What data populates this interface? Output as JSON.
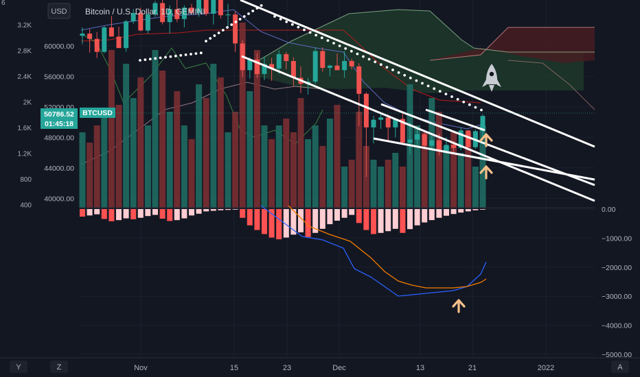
{
  "header": {
    "title": "Bitcoin / U.S. Dollar, 1D, GEMINI",
    "currency_button": "USD",
    "top_left_partial": "6"
  },
  "colors": {
    "background": "#131722",
    "up": "#26a69a",
    "down": "#ef5350",
    "vol_up": "#1f6b63",
    "vol_down": "#7a2f32",
    "hist_neg_dark": "#ff5252",
    "hist_neg_light": "#ffcdd2",
    "macd_line": "#2962ff",
    "signal_line": "#f57c00",
    "kumo_bull": "#1f3d2c",
    "kumo_bear": "#4a1d22",
    "price_tag": "#26a69a",
    "arrow": "#f6c08a"
  },
  "price_tag": {
    "symbol": "BTCUSD",
    "price": "50786.52",
    "countdown": "01:45:18"
  },
  "icons": {
    "rocket": "rocket-icon",
    "arrow": "arrow-up-icon"
  },
  "bottom_toolbar": {
    "left_a": "Y",
    "left_b": "Z",
    "right": "A"
  },
  "chart_data": [
    {
      "type": "candlestick",
      "title": "Bitcoin / U.S. Dollar, 1D, GEMINI",
      "price_axis": {
        "labels": [
          "60000.00",
          "56000.00",
          "52000.00",
          "48000.00",
          "44000.00",
          "40000.00"
        ],
        "values": [
          60000,
          56000,
          52000,
          48000,
          44000,
          40000
        ],
        "range": [
          38500,
          66000
        ]
      },
      "volume_axis": {
        "labels": [
          "3.2K",
          "2.8K",
          "2.4K",
          "2K",
          "1.6K",
          "1.2K",
          "800",
          "400"
        ],
        "values": [
          3200,
          2800,
          2400,
          2000,
          1600,
          1200,
          800,
          400
        ]
      },
      "x_axis": {
        "labels": [
          "Nov",
          "15",
          "23",
          "Dec",
          "13",
          "21",
          "2022"
        ]
      },
      "candles_ohlc": [
        [
          61300,
          62400,
          60200,
          61600
        ],
        [
          61600,
          62200,
          59100,
          60900
        ],
        [
          60900,
          61800,
          58400,
          59200
        ],
        [
          59200,
          62600,
          59000,
          62400
        ],
        [
          62400,
          63900,
          61500,
          61200
        ],
        [
          61200,
          62500,
          59800,
          59700
        ],
        [
          59700,
          63400,
          59200,
          63200
        ],
        [
          63200,
          64800,
          62900,
          64300
        ],
        [
          64300,
          65000,
          61900,
          62000
        ],
        [
          62000,
          64300,
          61600,
          64100
        ],
        [
          64100,
          65900,
          63800,
          65600
        ],
        [
          65600,
          68500,
          62800,
          63100
        ],
        [
          63100,
          65300,
          61600,
          64800
        ],
        [
          64800,
          66100,
          63100,
          63500
        ],
        [
          63500,
          65300,
          62400,
          65000
        ],
        [
          65000,
          65500,
          64100,
          64300
        ],
        [
          64300,
          66500,
          63800,
          66000
        ],
        [
          66000,
          67000,
          63900,
          64200
        ],
        [
          64200,
          67800,
          62800,
          67400
        ],
        [
          67400,
          68400,
          63600,
          64000
        ],
        [
          64000,
          65500,
          62300,
          64100
        ],
        [
          64100,
          64500,
          59200,
          60300
        ],
        [
          60300,
          60700,
          55900,
          56800
        ],
        [
          56800,
          58500,
          55700,
          58200
        ],
        [
          58200,
          59000,
          55800,
          56300
        ],
        [
          56300,
          58600,
          55500,
          57600
        ],
        [
          57600,
          58400,
          55400,
          57000
        ],
        [
          57000,
          59400,
          56300,
          58900
        ],
        [
          58900,
          59200,
          56900,
          58000
        ],
        [
          58000,
          58500,
          54600,
          55800
        ],
        [
          55800,
          57300,
          53800,
          55000
        ],
        [
          55000,
          55800,
          53600,
          55300
        ],
        [
          55300,
          59800,
          55000,
          59300
        ],
        [
          59300,
          59800,
          56600,
          57100
        ],
        [
          57100,
          57500,
          56000,
          57400
        ],
        [
          57400,
          59000,
          57100,
          56800
        ],
        [
          56800,
          59300,
          55800,
          58000
        ],
        [
          58000,
          58300,
          56900,
          57300
        ],
        [
          57300,
          57700,
          49500,
          53700
        ],
        [
          53700,
          53900,
          42800,
          49300
        ],
        [
          49300,
          50800,
          47200,
          50300
        ],
        [
          50300,
          51200,
          49100,
          50600
        ],
        [
          50600,
          51000,
          47500,
          49300
        ],
        [
          49300,
          49600,
          48000,
          50400
        ],
        [
          50400,
          51200,
          48900,
          47300
        ],
        [
          47300,
          50000,
          45800,
          47700
        ],
        [
          47700,
          49300,
          47000,
          48400
        ],
        [
          48400,
          48600,
          46500,
          46900
        ],
        [
          46900,
          48200,
          46300,
          47600
        ],
        [
          47600,
          48500,
          45600,
          46200
        ],
        [
          46200,
          48000,
          45900,
          47000
        ],
        [
          47000,
          47500,
          45800,
          46600
        ],
        [
          46600,
          49300,
          46300,
          48900
        ],
        [
          48900,
          48900,
          46500,
          46700
        ],
        [
          46700,
          49000,
          46500,
          48800
        ],
        [
          48800,
          51000,
          48100,
          50800
        ]
      ],
      "ichimoku": {
        "kumo_bull_span": [
          "Nov 6",
          "Dec 10"
        ],
        "kumo_bear_span": [
          "Dec 10",
          "Jan 10"
        ]
      },
      "trendlines": 5,
      "parabolic_sar": "above price"
    },
    {
      "type": "line",
      "title": "MACD",
      "y_axis": {
        "labels": [
          "0.00",
          "−1000.00",
          "−2000.00",
          "−3000.00",
          "−4000.00",
          "−5000.00"
        ],
        "values": [
          0,
          -1000,
          -2000,
          -3000,
          -4000,
          -5000
        ]
      },
      "histogram": [
        -260,
        -220,
        -180,
        -340,
        -420,
        -380,
        -320,
        -350,
        -300,
        -240,
        -200,
        -330,
        -410,
        -380,
        -320,
        -220,
        -160,
        -80,
        -60,
        -40,
        -30,
        -20,
        -300,
        -560,
        -720,
        -860,
        -980,
        -1040,
        -980,
        -880,
        -800,
        -960,
        -820,
        -680,
        -520,
        -400,
        -300,
        -200,
        -480,
        -720,
        -860,
        -820,
        -760,
        -680,
        -820,
        -690,
        -560,
        -460,
        -380,
        -300,
        -230,
        -170,
        -120,
        -80,
        -40,
        -20
      ],
      "macd_line": {
        "x": [
          "Dec 3",
          "Dec 8",
          "Dec 12",
          "Dec 18",
          "Dec 24"
        ],
        "y": [
          -700,
          -2400,
          -3000,
          -2750,
          -1800
        ]
      },
      "signal_line": {
        "x": [
          "Dec 1",
          "Dec 10",
          "Dec 18",
          "Dec 24"
        ],
        "y": [
          -700,
          -1800,
          -2700,
          -2450
        ]
      }
    }
  ]
}
